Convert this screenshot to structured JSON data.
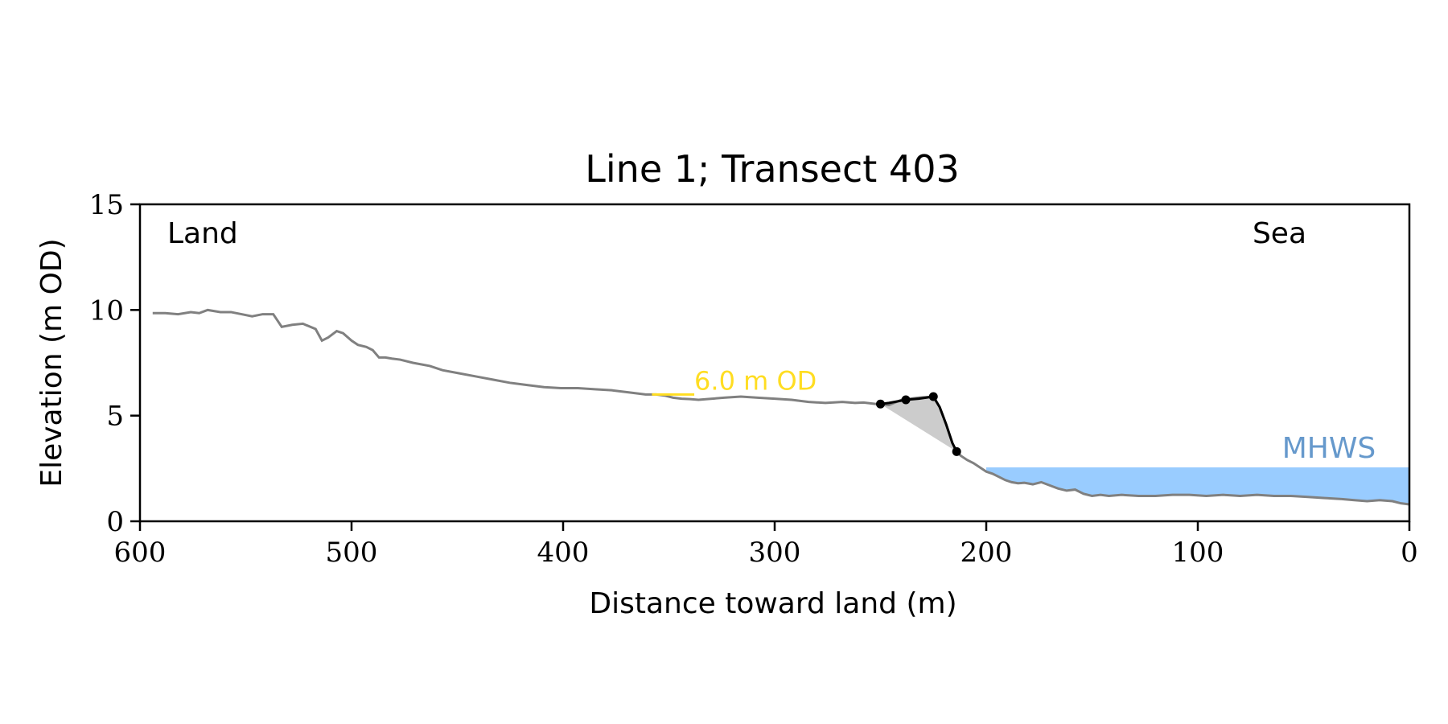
{
  "chart_data": {
    "type": "line",
    "title": "Line 1; Transect 403",
    "xlabel": "Distance toward land (m)",
    "ylabel": "Elevation (m OD)",
    "xlim": [
      600,
      0
    ],
    "ylim": [
      0,
      15
    ],
    "x_reversed": true,
    "xticks": [
      600,
      500,
      400,
      300,
      200,
      100,
      0
    ],
    "yticks": [
      0,
      5,
      10,
      15
    ],
    "grid": false,
    "corner_labels": {
      "left": "Land",
      "right": "Sea"
    },
    "colors": {
      "profile": "#808080",
      "feature": "#000000",
      "fill": "#cccccc",
      "sea": "#99ccff",
      "mhws_label": "#6699cc",
      "contour": "#ffdd22"
    },
    "mhws": {
      "label": "MHWS",
      "elevation": 2.55,
      "x_from": 200,
      "x_to": 0
    },
    "contour": {
      "label": "6.0 m OD",
      "elevation": 6.0,
      "x_from": 358,
      "x_to": 338
    },
    "profile": {
      "x": [
        594,
        588,
        582,
        576,
        572,
        568,
        562,
        557,
        552,
        547,
        542,
        537,
        533,
        528,
        523,
        517,
        514,
        511,
        507,
        504,
        500,
        497,
        493,
        490,
        487,
        484,
        481,
        477,
        471,
        463,
        457,
        449,
        441,
        433,
        425,
        417,
        409,
        401,
        393,
        385,
        377,
        369,
        361,
        356,
        352,
        348,
        344,
        340,
        336,
        332,
        324,
        316,
        308,
        300,
        292,
        284,
        276,
        268,
        262,
        258,
        252,
        246,
        240,
        232,
        225,
        222,
        219,
        216,
        214,
        212,
        209,
        206,
        203,
        200,
        197,
        194,
        191,
        188,
        185,
        182,
        178,
        174,
        170,
        166,
        162,
        158,
        154,
        150,
        146,
        142,
        136,
        128,
        120,
        112,
        104,
        96,
        88,
        80,
        72,
        64,
        56,
        48,
        40,
        32,
        26,
        20,
        14,
        8,
        4,
        0
      ],
      "y": [
        9.85,
        9.85,
        9.8,
        9.9,
        9.85,
        10.0,
        9.9,
        9.9,
        9.8,
        9.7,
        9.8,
        9.8,
        9.2,
        9.3,
        9.35,
        9.1,
        8.55,
        8.7,
        9.0,
        8.9,
        8.55,
        8.35,
        8.25,
        8.1,
        7.75,
        7.75,
        7.7,
        7.65,
        7.5,
        7.35,
        7.15,
        7.0,
        6.85,
        6.7,
        6.55,
        6.45,
        6.35,
        6.3,
        6.3,
        6.25,
        6.2,
        6.1,
        6.0,
        6.0,
        5.95,
        5.85,
        5.8,
        5.78,
        5.75,
        5.78,
        5.85,
        5.9,
        5.85,
        5.8,
        5.75,
        5.65,
        5.6,
        5.65,
        5.6,
        5.62,
        5.55,
        5.5,
        5.75,
        5.85,
        5.9,
        5.4,
        4.6,
        3.7,
        3.3,
        3.1,
        2.9,
        2.75,
        2.55,
        2.35,
        2.25,
        2.1,
        1.95,
        1.85,
        1.8,
        1.82,
        1.75,
        1.85,
        1.7,
        1.55,
        1.45,
        1.5,
        1.3,
        1.2,
        1.25,
        1.2,
        1.25,
        1.2,
        1.2,
        1.25,
        1.25,
        1.2,
        1.25,
        1.2,
        1.25,
        1.2,
        1.2,
        1.15,
        1.1,
        1.05,
        1.0,
        0.95,
        1.0,
        0.95,
        0.85,
        0.8
      ]
    },
    "feature": {
      "x": [
        250,
        246,
        238,
        232,
        225,
        222,
        219,
        216,
        214
      ],
      "y": [
        5.55,
        5.6,
        5.75,
        5.8,
        5.9,
        5.4,
        4.6,
        3.7,
        3.3
      ],
      "markers": [
        [
          250,
          5.55
        ],
        [
          238,
          5.75
        ],
        [
          225,
          5.9
        ],
        [
          214,
          3.3
        ]
      ]
    }
  }
}
